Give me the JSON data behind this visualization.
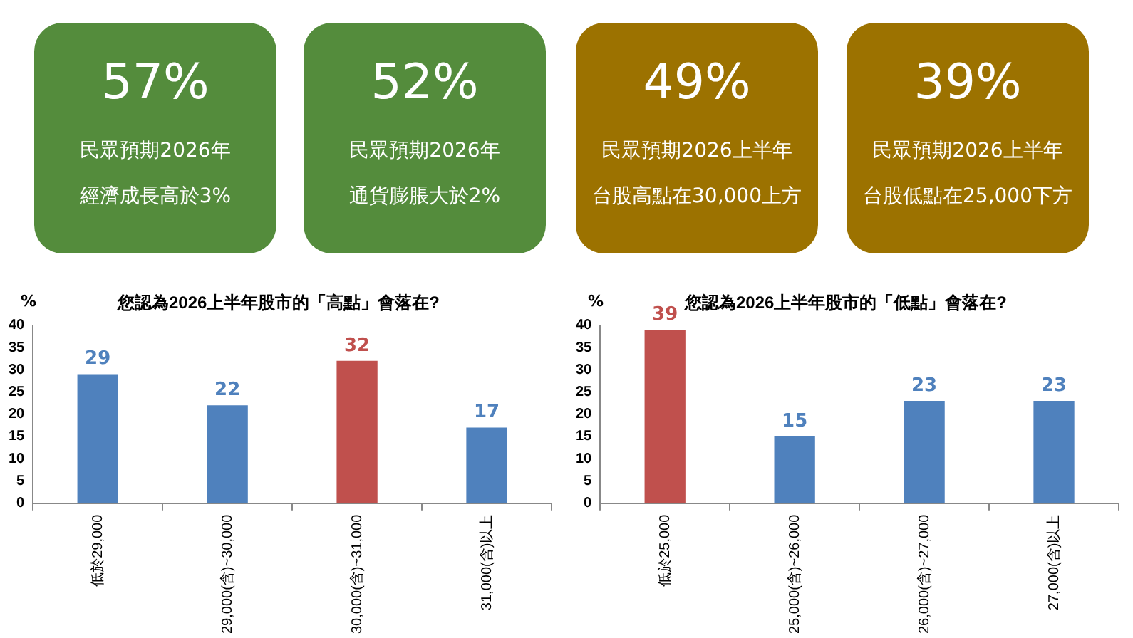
{
  "chart_data": [
    {
      "type": "other",
      "color": "#548c3c",
      "annotations": [
        "57%",
        "民眾預期2026年",
        "經濟成長高於3%"
      ]
    },
    {
      "type": "other",
      "color": "#548c3c",
      "annotations": [
        "52%",
        "民眾預期2026年",
        "通貨膨脹大於2%"
      ]
    },
    {
      "type": "other",
      "color": "#9c7200",
      "annotations": [
        "49%",
        "民眾預期2026上半年",
        "台股高點在30,000上方"
      ]
    },
    {
      "type": "other",
      "color": "#9c7200",
      "annotations": [
        "39%",
        "民眾預期2026上半年",
        "台股低點在25,000下方"
      ]
    },
    {
      "type": "bar",
      "title": "您認為2026上半年股市的「高點」會落在?",
      "ylabel": "%",
      "categories": [
        "低於29,000",
        "29,000(含)~30,000",
        "30,000(含)~31,000",
        "31,000(含)以上"
      ],
      "values": [
        29,
        22,
        32,
        17
      ],
      "colors": [
        "#4f81bd",
        "#4f81bd",
        "#c0504d",
        "#4f81bd"
      ],
      "ylim": [
        0,
        40
      ],
      "yticks": [
        0,
        5,
        10,
        15,
        20,
        25,
        30,
        35,
        40
      ],
      "grid": false,
      "data_labels": true
    },
    {
      "type": "bar",
      "title": "您認為2026上半年股市的「低點」會落在?",
      "ylabel": "%",
      "categories": [
        "低於25,000",
        "25,000(含)~26,000",
        "26,000(含)~27,000",
        "27,000(含)以上"
      ],
      "values": [
        39,
        15,
        23,
        23
      ],
      "colors": [
        "#c0504d",
        "#4f81bd",
        "#4f81bd",
        "#4f81bd"
      ],
      "ylim": [
        0,
        40
      ],
      "yticks": [
        0,
        5,
        10,
        15,
        20,
        25,
        30,
        35,
        40
      ],
      "grid": false,
      "data_labels": true
    }
  ]
}
